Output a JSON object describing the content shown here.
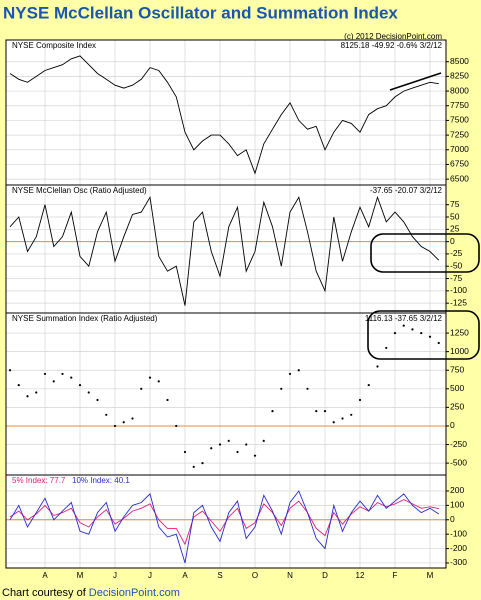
{
  "title": "NYSE McClellan Oscillator and Summation Index",
  "footer": {
    "prefix": "Chart courtesy of",
    "link": "DecisionPoint.com"
  },
  "chart_data": [
    {
      "type": "line",
      "title": "NYSE Composite Index",
      "info": "8125.18 -49.92 -0.6% 3/2/12",
      "note": "(c) 2012 DecisionPoint.com",
      "xlim": [
        0,
        12.4
      ],
      "ylim": [
        6400,
        8870
      ],
      "yticks": [
        6500,
        6750,
        7000,
        7250,
        7500,
        7750,
        8000,
        8250,
        8500
      ],
      "x": [
        0,
        0.25,
        0.5,
        0.75,
        1,
        1.25,
        1.5,
        1.75,
        2,
        2.25,
        2.5,
        2.75,
        3,
        3.25,
        3.5,
        3.75,
        4,
        4.25,
        4.5,
        4.75,
        5,
        5.25,
        5.5,
        5.75,
        6,
        6.25,
        6.5,
        6.75,
        7,
        7.25,
        7.5,
        7.75,
        8,
        8.25,
        8.5,
        8.75,
        9,
        9.25,
        9.5,
        9.75,
        10,
        10.25,
        10.5,
        10.75,
        11,
        11.25,
        11.5,
        11.75,
        12,
        12.25
      ],
      "series": [
        {
          "color": "#000000",
          "values": [
            8300,
            8200,
            8150,
            8250,
            8350,
            8400,
            8450,
            8550,
            8600,
            8450,
            8300,
            8200,
            8100,
            8050,
            8100,
            8200,
            8400,
            8350,
            8150,
            7900,
            7300,
            7000,
            7150,
            7250,
            7250,
            7100,
            6900,
            7000,
            6600,
            7100,
            7350,
            7600,
            7800,
            7500,
            7350,
            7400,
            7000,
            7300,
            7500,
            7450,
            7300,
            7600,
            7700,
            7750,
            7900,
            8000,
            8050,
            8100,
            8150,
            8125.18
          ]
        }
      ]
    },
    {
      "type": "line",
      "title": "NYSE McClellan Osc (Ratio Adjusted)",
      "info": "-37.65 -20.07 3/2/12",
      "xlim": [
        0,
        12.4
      ],
      "ylim": [
        -145,
        115
      ],
      "hline": 0,
      "yticks": [
        -125,
        -100,
        -75,
        -50,
        -25,
        0,
        25,
        50,
        75
      ],
      "x": [
        0,
        0.25,
        0.5,
        0.75,
        1,
        1.25,
        1.5,
        1.75,
        2,
        2.25,
        2.5,
        2.75,
        3,
        3.25,
        3.5,
        3.75,
        4,
        4.25,
        4.5,
        4.75,
        5,
        5.25,
        5.5,
        5.75,
        6,
        6.25,
        6.5,
        6.75,
        7,
        7.25,
        7.5,
        7.75,
        8,
        8.25,
        8.5,
        8.75,
        9,
        9.25,
        9.5,
        9.75,
        10,
        10.25,
        10.5,
        10.75,
        11,
        11.25,
        11.5,
        11.75,
        12,
        12.25
      ],
      "series": [
        {
          "color": "#000000",
          "values": [
            30,
            50,
            -20,
            10,
            75,
            -10,
            10,
            60,
            -30,
            -50,
            20,
            60,
            -40,
            10,
            55,
            60,
            90,
            -30,
            -60,
            -50,
            -130,
            40,
            60,
            -20,
            -70,
            30,
            70,
            -60,
            -20,
            80,
            30,
            -50,
            60,
            90,
            20,
            -60,
            -100,
            50,
            -40,
            20,
            70,
            30,
            90,
            40,
            60,
            40,
            10,
            -10,
            -20,
            -37.65
          ]
        }
      ]
    },
    {
      "type": "scatter",
      "title": "NYSE Summation Index (Ratio Adjusted)",
      "info": "1116.13 -37.65 3/2/12",
      "xlim": [
        0,
        12.4
      ],
      "ylim": [
        -660,
        1520
      ],
      "hline": 0,
      "yticks": [
        -500,
        -250,
        0,
        250,
        500,
        750,
        1000,
        1250
      ],
      "x": [
        0,
        0.25,
        0.5,
        0.75,
        1,
        1.25,
        1.5,
        1.75,
        2,
        2.25,
        2.5,
        2.75,
        3,
        3.25,
        3.5,
        3.75,
        4,
        4.25,
        4.5,
        4.75,
        5,
        5.25,
        5.5,
        5.75,
        6,
        6.25,
        6.5,
        6.75,
        7,
        7.25,
        7.5,
        7.75,
        8,
        8.25,
        8.5,
        8.75,
        9,
        9.25,
        9.5,
        9.75,
        10,
        10.25,
        10.5,
        10.75,
        11,
        11.25,
        11.5,
        11.75,
        12,
        12.25
      ],
      "series": [
        {
          "color": "#000000",
          "values": [
            750,
            550,
            400,
            450,
            700,
            600,
            700,
            650,
            550,
            450,
            350,
            150,
            0,
            50,
            100,
            500,
            650,
            600,
            350,
            0,
            -350,
            -550,
            -500,
            -300,
            -250,
            -200,
            -350,
            -250,
            -400,
            -200,
            200,
            500,
            700,
            750,
            500,
            200,
            200,
            50,
            100,
            150,
            350,
            550,
            800,
            1050,
            1250,
            1350,
            1300,
            1250,
            1200,
            1116.13
          ]
        }
      ]
    },
    {
      "type": "line",
      "xlim": [
        0,
        12.4
      ],
      "ylim": [
        -335,
        311
      ],
      "hline": 0,
      "yticks": [
        -300,
        -200,
        -100,
        0,
        100,
        200
      ],
      "xticks": [
        {
          "value": 1,
          "label": "A"
        },
        {
          "value": 2,
          "label": "M"
        },
        {
          "value": 3,
          "label": "J"
        },
        {
          "value": 4,
          "label": "J"
        },
        {
          "value": 5,
          "label": "A"
        },
        {
          "value": 6,
          "label": "S"
        },
        {
          "value": 7,
          "label": "O"
        },
        {
          "value": 8,
          "label": "N"
        },
        {
          "value": 9,
          "label": "D"
        },
        {
          "value": 10,
          "label": "12"
        },
        {
          "value": 11,
          "label": "F"
        },
        {
          "value": 12,
          "label": "M"
        }
      ],
      "x": [
        0,
        0.25,
        0.5,
        0.75,
        1,
        1.25,
        1.5,
        1.75,
        2,
        2.25,
        2.5,
        2.75,
        3,
        3.25,
        3.5,
        3.75,
        4,
        4.25,
        4.5,
        4.75,
        5,
        5.25,
        5.5,
        5.75,
        6,
        6.25,
        6.5,
        6.75,
        7,
        7.25,
        7.5,
        7.75,
        8,
        8.25,
        8.5,
        8.75,
        9,
        9.25,
        9.5,
        9.75,
        10,
        10.25,
        10.5,
        10.75,
        11,
        11.25,
        11.5,
        11.75,
        12,
        12.25
      ],
      "series": [
        {
          "name": "5% Index: 77.7",
          "color": "#e0207a",
          "values": [
            20,
            60,
            0,
            40,
            100,
            30,
            50,
            80,
            -20,
            -50,
            20,
            70,
            -30,
            10,
            60,
            80,
            110,
            0,
            -60,
            -60,
            -170,
            20,
            60,
            -10,
            -80,
            20,
            80,
            -60,
            -20,
            110,
            50,
            -40,
            80,
            130,
            50,
            -60,
            -110,
            50,
            -30,
            40,
            90,
            60,
            120,
            90,
            110,
            140,
            110,
            80,
            90,
            77.7
          ]
        },
        {
          "name": "10% Index: 40.1",
          "color": "#2a2ac8",
          "values": [
            0,
            100,
            -50,
            50,
            150,
            0,
            60,
            120,
            -80,
            -100,
            50,
            120,
            -80,
            20,
            100,
            120,
            180,
            -50,
            -120,
            -100,
            -300,
            50,
            100,
            -50,
            -150,
            50,
            130,
            -130,
            -50,
            170,
            60,
            -100,
            120,
            200,
            50,
            -130,
            -200,
            100,
            -80,
            50,
            130,
            60,
            170,
            80,
            130,
            180,
            100,
            50,
            80,
            40.1
          ]
        }
      ]
    }
  ]
}
